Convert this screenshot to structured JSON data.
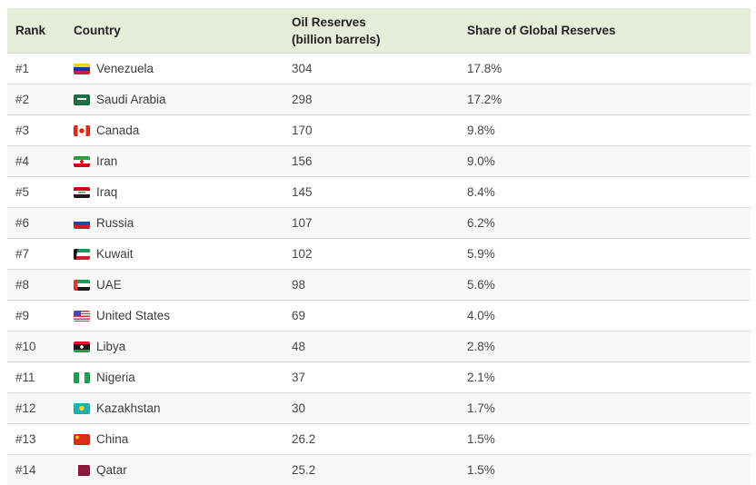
{
  "header": {
    "rank": "Rank",
    "country": "Country",
    "oil_line1": "Oil Reserves",
    "oil_line2": "(billion barrels)",
    "share": "Share of Global Reserves"
  },
  "rows": [
    {
      "rank": "#1",
      "country": "Venezuela",
      "flag": "venezuela-flag-icon",
      "reserves": "304",
      "share": "17.8%"
    },
    {
      "rank": "#2",
      "country": "Saudi Arabia",
      "flag": "saudi-arabia-flag-icon",
      "reserves": "298",
      "share": "17.2%"
    },
    {
      "rank": "#3",
      "country": "Canada",
      "flag": "canada-flag-icon",
      "reserves": "170",
      "share": "9.8%"
    },
    {
      "rank": "#4",
      "country": "Iran",
      "flag": "iran-flag-icon",
      "reserves": "156",
      "share": "9.0%"
    },
    {
      "rank": "#5",
      "country": "Iraq",
      "flag": "iraq-flag-icon",
      "reserves": "145",
      "share": "8.4%"
    },
    {
      "rank": "#6",
      "country": "Russia",
      "flag": "russia-flag-icon",
      "reserves": "107",
      "share": "6.2%"
    },
    {
      "rank": "#7",
      "country": "Kuwait",
      "flag": "kuwait-flag-icon",
      "reserves": "102",
      "share": "5.9%"
    },
    {
      "rank": "#8",
      "country": "UAE",
      "flag": "uae-flag-icon",
      "reserves": "98",
      "share": "5.6%"
    },
    {
      "rank": "#9",
      "country": "United States",
      "flag": "united-states-flag-icon",
      "reserves": "69",
      "share": "4.0%"
    },
    {
      "rank": "#10",
      "country": "Libya",
      "flag": "libya-flag-icon",
      "reserves": "48",
      "share": "2.8%"
    },
    {
      "rank": "#11",
      "country": "Nigeria",
      "flag": "nigeria-flag-icon",
      "reserves": "37",
      "share": "2.1%"
    },
    {
      "rank": "#12",
      "country": "Kazakhstan",
      "flag": "kazakhstan-flag-icon",
      "reserves": "30",
      "share": "1.7%"
    },
    {
      "rank": "#13",
      "country": "China",
      "flag": "china-flag-icon",
      "reserves": "26.2",
      "share": "1.5%"
    },
    {
      "rank": "#14",
      "country": "Qatar",
      "flag": "qatar-flag-icon",
      "reserves": "25.2",
      "share": "1.5%"
    }
  ],
  "colors": {
    "header_bg": "#e5eed8",
    "row_alt_bg": "#f8f8f8",
    "divider": "#d9d9d9",
    "header_text": "#222222",
    "body_text": "#474747"
  },
  "chart_data": {
    "type": "table",
    "title": "Oil Reserves by Country",
    "columns": [
      "Rank",
      "Country",
      "Oil Reserves (billion barrels)",
      "Share of Global Reserves"
    ],
    "rows": [
      [
        "#1",
        "Venezuela",
        304,
        "17.8%"
      ],
      [
        "#2",
        "Saudi Arabia",
        298,
        "17.2%"
      ],
      [
        "#3",
        "Canada",
        170,
        "9.8%"
      ],
      [
        "#4",
        "Iran",
        156,
        "9.0%"
      ],
      [
        "#5",
        "Iraq",
        145,
        "8.4%"
      ],
      [
        "#6",
        "Russia",
        107,
        "6.2%"
      ],
      [
        "#7",
        "Kuwait",
        102,
        "5.9%"
      ],
      [
        "#8",
        "UAE",
        98,
        "5.6%"
      ],
      [
        "#9",
        "United States",
        69,
        "4.0%"
      ],
      [
        "#10",
        "Libya",
        48,
        "2.8%"
      ],
      [
        "#11",
        "Nigeria",
        37,
        "2.1%"
      ],
      [
        "#12",
        "Kazakhstan",
        30,
        "1.7%"
      ],
      [
        "#13",
        "China",
        26.2,
        "1.5%"
      ],
      [
        "#14",
        "Qatar",
        25.2,
        "1.5%"
      ]
    ],
    "legend_position": "none",
    "grid": "horizontal-dividers"
  }
}
